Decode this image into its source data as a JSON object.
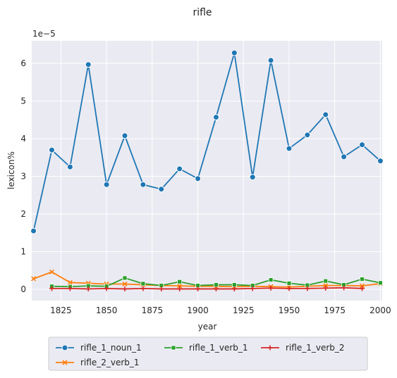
{
  "chart_data": {
    "type": "line",
    "title": "rifle",
    "xlabel": "year",
    "ylabel": "lexicon%",
    "y_scale_label": "1e−5",
    "xlim": [
      1809,
      2001
    ],
    "ylim": [
      -0.3,
      6.6
    ],
    "x_ticks": [
      1825,
      1850,
      1875,
      1900,
      1925,
      1950,
      1975,
      2000
    ],
    "y_ticks": [
      0,
      1,
      2,
      3,
      4,
      5,
      6
    ],
    "grid": true,
    "legend_position": "bottom-center",
    "series": [
      {
        "name": "rifle_1_noun_1",
        "color": "#1f77b4",
        "marker": "circle",
        "x": [
          1810,
          1820,
          1830,
          1840,
          1850,
          1860,
          1870,
          1880,
          1890,
          1900,
          1910,
          1920,
          1930,
          1940,
          1950,
          1960,
          1970,
          1980,
          1990,
          2000
        ],
        "values": [
          1.55,
          3.7,
          3.25,
          5.97,
          2.78,
          4.08,
          2.78,
          2.66,
          3.2,
          2.94,
          4.57,
          6.28,
          2.98,
          6.08,
          3.74,
          4.1,
          4.64,
          3.52,
          3.84,
          3.41
        ]
      },
      {
        "name": "rifle_2_verb_1",
        "color": "#ff7f0e",
        "marker": "x",
        "x": [
          1810,
          1820,
          1830,
          1840,
          1850,
          1860,
          1870,
          1880,
          1890,
          1900,
          1910,
          1920,
          1930,
          1940,
          1950,
          1960,
          1970,
          1980,
          1990,
          2000
        ],
        "values": [
          0.28,
          0.46,
          0.18,
          0.16,
          0.14,
          0.14,
          0.12,
          0.1,
          0.09,
          0.08,
          0.08,
          0.07,
          0.08,
          0.07,
          0.06,
          0.08,
          0.1,
          0.1,
          0.09,
          0.15
        ]
      },
      {
        "name": "rifle_1_verb_1",
        "color": "#2ca02c",
        "marker": "square",
        "x": [
          1820,
          1830,
          1840,
          1850,
          1860,
          1870,
          1880,
          1890,
          1900,
          1910,
          1920,
          1930,
          1940,
          1950,
          1960,
          1970,
          1980,
          1990,
          2000
        ],
        "values": [
          0.08,
          0.07,
          0.09,
          0.08,
          0.3,
          0.15,
          0.1,
          0.2,
          0.1,
          0.12,
          0.12,
          0.1,
          0.25,
          0.16,
          0.11,
          0.22,
          0.12,
          0.27,
          0.17
        ]
      },
      {
        "name": "rifle_1_verb_2",
        "color": "#d62728",
        "marker": "plus",
        "x": [
          1820,
          1830,
          1840,
          1850,
          1860,
          1870,
          1880,
          1890,
          1900,
          1910,
          1920,
          1930,
          1940,
          1950,
          1960,
          1970,
          1980,
          1990
        ],
        "values": [
          0.02,
          0.02,
          0.01,
          0.02,
          0.01,
          0.02,
          0.01,
          0.01,
          0.01,
          0.01,
          0.01,
          0.02,
          0.03,
          0.02,
          0.02,
          0.03,
          0.04,
          0.02
        ]
      }
    ]
  }
}
